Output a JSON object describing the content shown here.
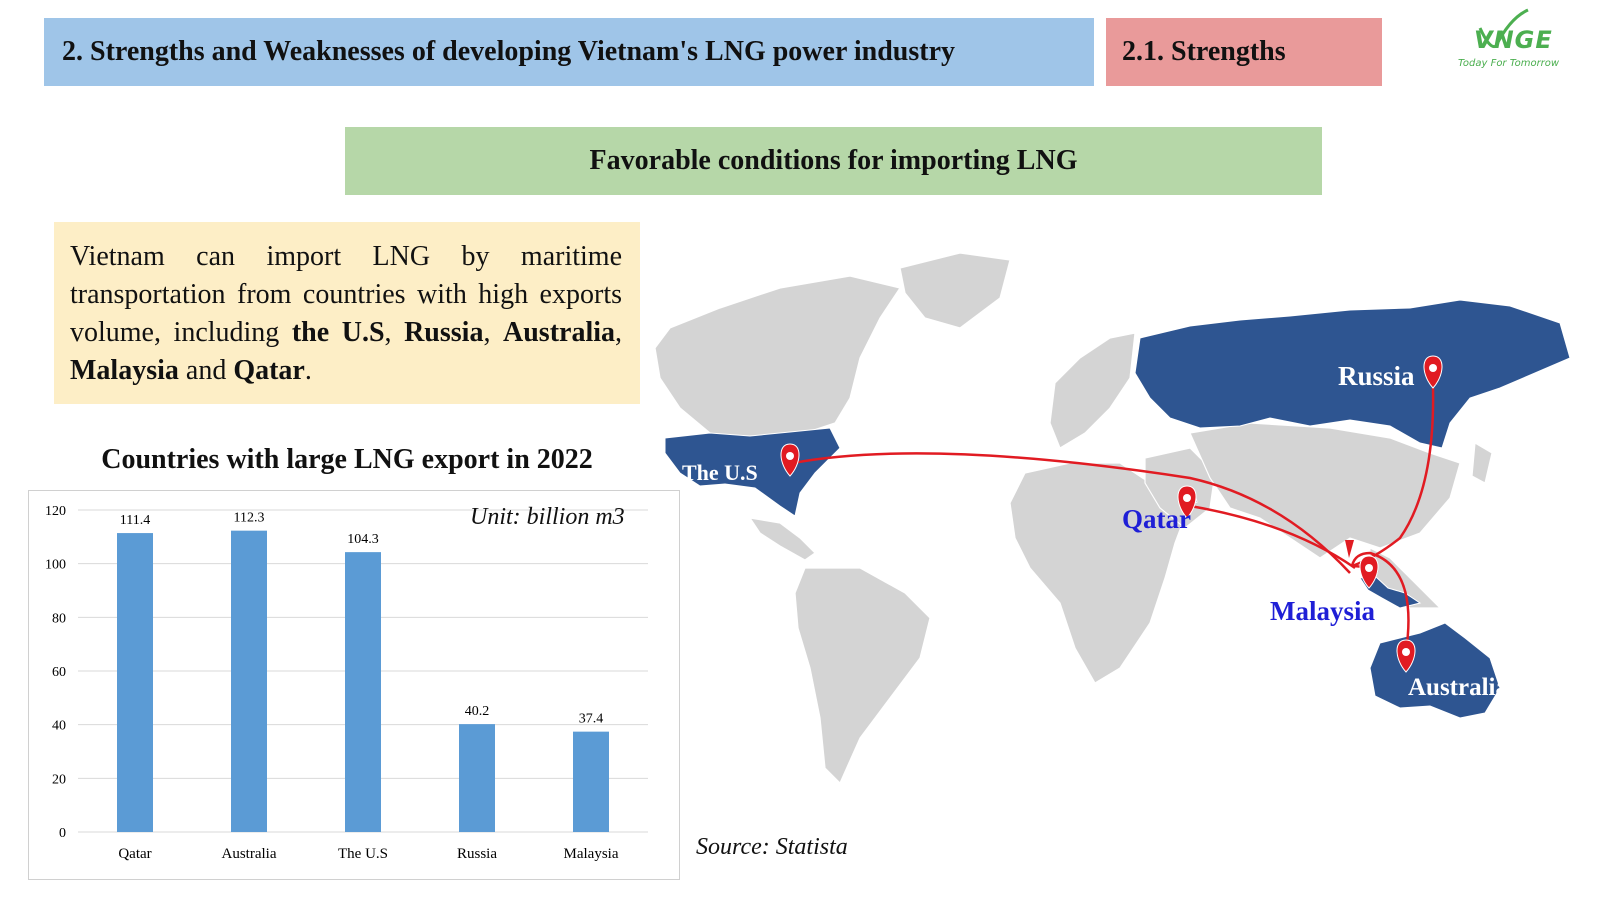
{
  "header": {
    "title": "2.  Strengths and Weaknesses of developing Vietnam's LNG power industry",
    "section": "2.1. Strengths",
    "logo_text": "VNGE",
    "logo_tagline": "Today For Tomorrow"
  },
  "subheading": "Favorable conditions for importing LNG",
  "description": {
    "text_1": "Vietnam can import LNG by maritime transportation from countries with high exports volume, including ",
    "bold_1": "the U.S",
    "sep_1": ", ",
    "bold_2": "Russia",
    "sep_2": ", ",
    "bold_3": "Australia",
    "sep_3": ", ",
    "bold_4": "Malaysia",
    "sep_4": " and ",
    "bold_5": "Qatar",
    "end": "."
  },
  "chart_data": {
    "type": "bar",
    "title": "Countries with large LNG export in 2022",
    "unit_note": "Unit: billion m3",
    "categories": [
      "Qatar",
      "Australia",
      "The U.S",
      "Russia",
      "Malaysia"
    ],
    "values": [
      111.4,
      112.3,
      104.3,
      40.2,
      37.4
    ],
    "value_labels": [
      "111.4",
      "112.3",
      "104.3",
      "40.2",
      "37.4"
    ],
    "ylim": [
      0,
      120
    ],
    "yticks": [
      "0",
      "20",
      "40",
      "60",
      "80",
      "100",
      "120"
    ],
    "grid": true,
    "bar_color": "#5b9bd5"
  },
  "map": {
    "labels": {
      "russia": "Russia",
      "us": "The U.S",
      "qatar": "Qatar",
      "malaysia": "Malaysia",
      "australia": "Australia"
    },
    "highlight_color": "#2e5591",
    "land_color": "#d4d4d4",
    "route_color": "#e11b22"
  },
  "source": "Source: Statista"
}
